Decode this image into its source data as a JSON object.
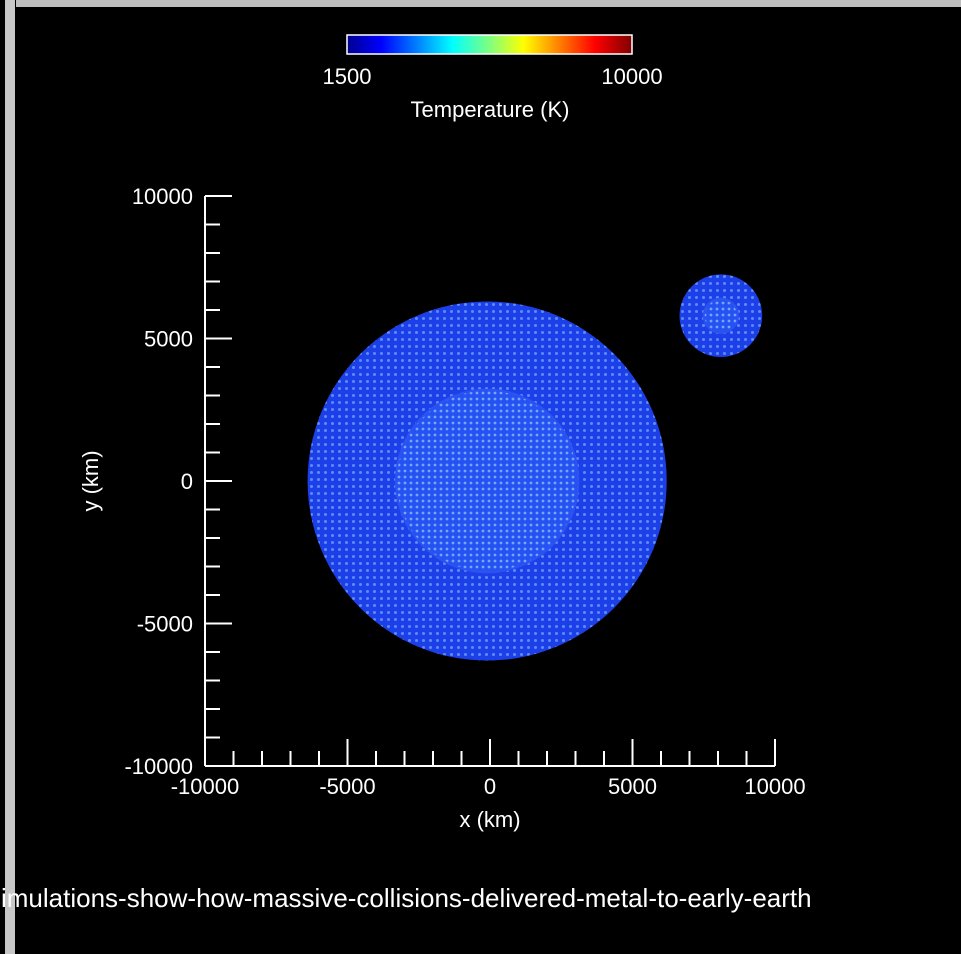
{
  "chart_data": {
    "type": "scatter",
    "colorbar": {
      "label": "Temperature (K)",
      "min_label": "1500",
      "max_label": "10000",
      "min": 1500,
      "max": 10000,
      "colormap": "jet"
    },
    "xlabel": "x (km)",
    "ylabel": "y (km)",
    "xlim": [
      -10000,
      10000
    ],
    "ylim": [
      -10000,
      10000
    ],
    "x_ticks": [
      -10000,
      -5000,
      0,
      5000,
      10000
    ],
    "x_tick_labels": [
      "-10000",
      "-5000",
      "0",
      "5000",
      "10000"
    ],
    "y_ticks": [
      -10000,
      -5000,
      0,
      5000,
      10000
    ],
    "y_tick_labels": [
      "-10000",
      "-5000",
      "0",
      "5000",
      "10000"
    ],
    "bodies": [
      {
        "center_x": -100,
        "center_y": 0,
        "radius": 6300,
        "core_radius": 3200,
        "temperature": 1500
      },
      {
        "center_x": 8100,
        "center_y": 5800,
        "radius": 1450,
        "core_radius": 600,
        "temperature": 1500
      }
    ]
  },
  "caption": "simulations-show-how-massive-collisions-delivered-metal-to-early-earth",
  "colors": {
    "background": "#000000",
    "axis": "#ffffff",
    "text": "#ffffff",
    "particle_fill": "#1d3fe8",
    "particle_dot": "#5b8cff",
    "core_fill": "#2553f2",
    "frame": "#c7c7c7"
  }
}
